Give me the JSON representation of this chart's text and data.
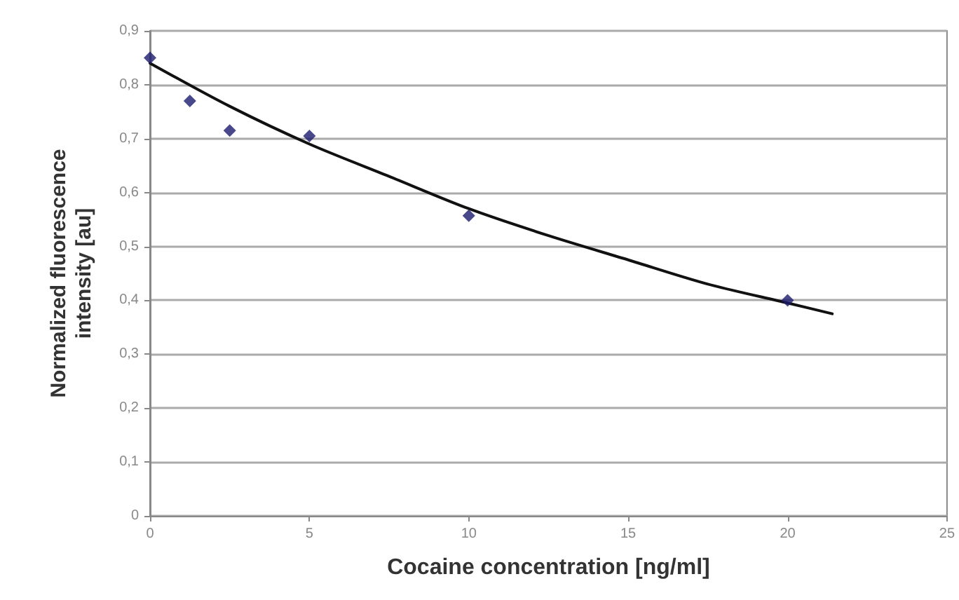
{
  "chart_data": {
    "type": "scatter",
    "xlabel": "Cocaine concentration [ng/ml]",
    "ylabel": "Normalized fluorescence\nintensity [au]",
    "series": [
      {
        "color": "#1a1a6e",
        "marker": "diamond",
        "x": [
          0,
          1.25,
          2.5,
          5,
          10,
          20
        ],
        "values": [
          0.85,
          0.77,
          0.715,
          0.705,
          0.557,
          0.4
        ]
      },
      {
        "type": "line",
        "color": "#111111",
        "marker": "none",
        "line_style": "solid",
        "x": [
          0,
          2.5,
          5,
          7.5,
          10,
          12.5,
          15,
          17.5,
          20,
          21.4
        ],
        "values": [
          0.84,
          0.76,
          0.69,
          0.63,
          0.57,
          0.52,
          0.475,
          0.43,
          0.395,
          0.375
        ]
      }
    ],
    "xlim": [
      0,
      25
    ],
    "xticks": [
      0,
      5,
      10,
      15,
      20,
      25
    ],
    "ylim": [
      0,
      0.9
    ],
    "yticks": [
      0,
      {
        "value": 0.1,
        "label": "0,1"
      },
      {
        "value": 0.2,
        "label": "0,2"
      },
      {
        "value": 0.3,
        "label": "0,3"
      },
      {
        "value": 0.4,
        "label": "0,4"
      },
      {
        "value": 0.5,
        "label": "0,5"
      },
      {
        "value": 0.6,
        "label": "0,6"
      },
      {
        "value": 0.7,
        "label": "0,7"
      },
      {
        "value": 0.8,
        "label": "0,8"
      },
      {
        "value": 0.9,
        "label": "0,9"
      }
    ],
    "grid": "y"
  }
}
